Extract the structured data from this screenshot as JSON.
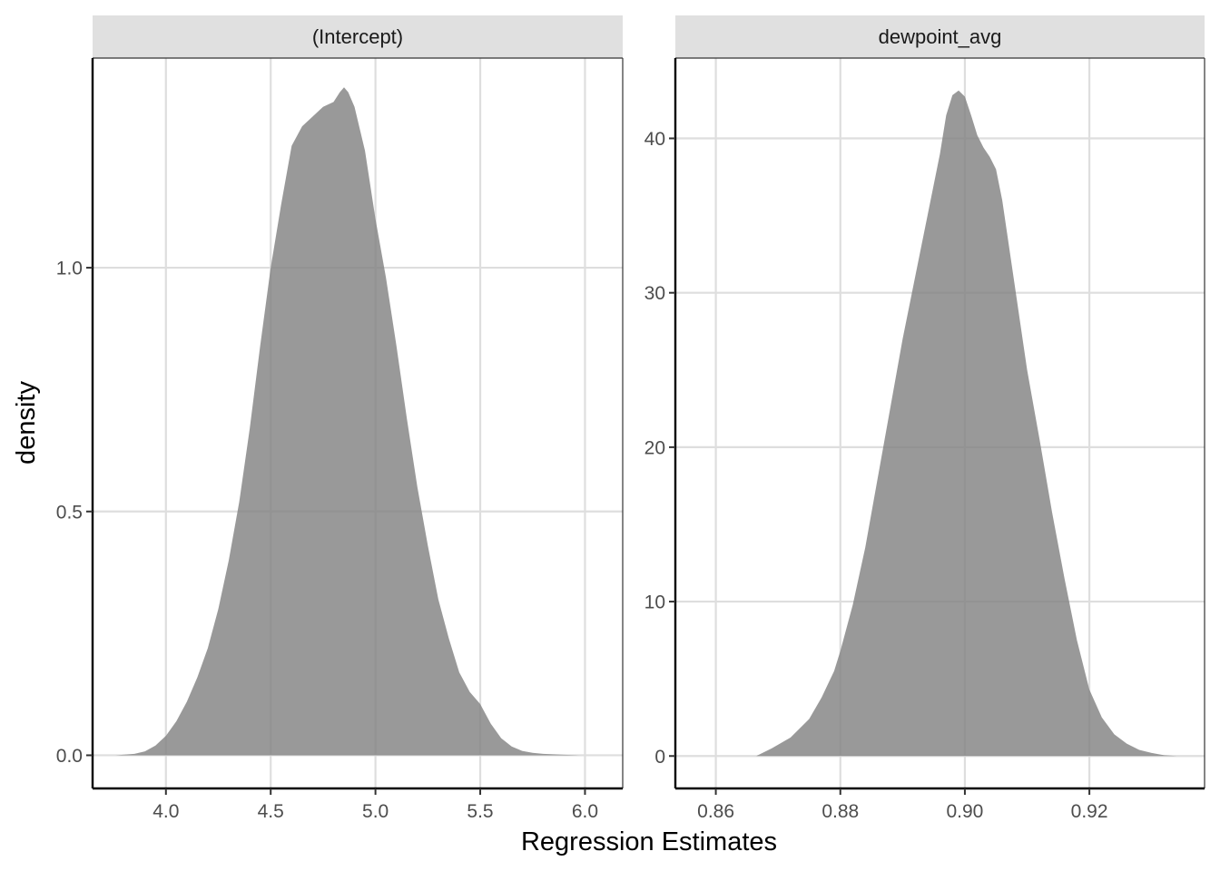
{
  "chart_data": {
    "type": "area",
    "xlabel": "Regression Estimates",
    "ylabel": "density",
    "grid": true,
    "legend": "none",
    "fill_color": "#7f7f7f",
    "fill_opacity": 0.8,
    "panels": [
      {
        "strip": "(Intercept)",
        "xlim": [
          3.65,
          6.18
        ],
        "ylim": [
          -0.068,
          1.43
        ],
        "x_ticks": [
          4.0,
          4.5,
          5.0,
          5.5,
          6.0
        ],
        "x_tick_labels": [
          "4.0",
          "4.5",
          "5.0",
          "5.5",
          "6.0"
        ],
        "y_ticks": [
          0.0,
          0.5,
          1.0
        ],
        "y_tick_labels": [
          "0.0",
          "0.5",
          "1.0"
        ],
        "x": [
          3.76,
          3.85,
          3.9,
          3.95,
          4.0,
          4.05,
          4.1,
          4.15,
          4.2,
          4.25,
          4.3,
          4.35,
          4.4,
          4.45,
          4.5,
          4.55,
          4.6,
          4.65,
          4.7,
          4.75,
          4.8,
          4.83,
          4.85,
          4.87,
          4.9,
          4.95,
          5.0,
          5.05,
          5.1,
          5.15,
          5.2,
          5.25,
          5.3,
          5.35,
          5.4,
          5.45,
          5.5,
          5.55,
          5.6,
          5.65,
          5.7,
          5.75,
          5.8,
          5.9,
          5.98
        ],
        "y": [
          0.0,
          0.003,
          0.008,
          0.02,
          0.04,
          0.07,
          0.11,
          0.16,
          0.22,
          0.3,
          0.4,
          0.52,
          0.67,
          0.84,
          1.0,
          1.13,
          1.25,
          1.29,
          1.31,
          1.33,
          1.34,
          1.36,
          1.37,
          1.36,
          1.33,
          1.24,
          1.1,
          0.98,
          0.84,
          0.69,
          0.55,
          0.43,
          0.32,
          0.24,
          0.17,
          0.13,
          0.105,
          0.065,
          0.035,
          0.018,
          0.009,
          0.005,
          0.003,
          0.001,
          0.0
        ]
      },
      {
        "strip": "dewpoint_avg",
        "xlim": [
          0.8535,
          0.9385
        ],
        "ylim": [
          -2.1,
          45.2
        ],
        "x_ticks": [
          0.86,
          0.88,
          0.9,
          0.92
        ],
        "x_tick_labels": [
          "0.86",
          "0.88",
          "0.90",
          "0.92"
        ],
        "y_ticks": [
          0,
          10,
          20,
          30,
          40
        ],
        "y_tick_labels": [
          "0",
          "10",
          "20",
          "30",
          "40"
        ],
        "x": [
          0.8665,
          0.869,
          0.872,
          0.875,
          0.877,
          0.879,
          0.88,
          0.882,
          0.884,
          0.886,
          0.888,
          0.89,
          0.892,
          0.894,
          0.896,
          0.897,
          0.898,
          0.899,
          0.9,
          0.901,
          0.902,
          0.903,
          0.904,
          0.905,
          0.906,
          0.908,
          0.91,
          0.912,
          0.914,
          0.916,
          0.918,
          0.92,
          0.922,
          0.924,
          0.926,
          0.928,
          0.93,
          0.932,
          0.934
        ],
        "y": [
          0.0,
          0.5,
          1.2,
          2.4,
          3.8,
          5.5,
          6.8,
          9.8,
          13.5,
          18.0,
          22.5,
          27.0,
          31.0,
          35.0,
          39.0,
          41.5,
          42.8,
          43.1,
          42.7,
          41.5,
          40.2,
          39.4,
          38.8,
          38.0,
          36.0,
          30.5,
          25.0,
          20.5,
          15.8,
          11.5,
          7.5,
          4.3,
          2.5,
          1.4,
          0.8,
          0.4,
          0.2,
          0.05,
          0.0
        ]
      }
    ]
  }
}
